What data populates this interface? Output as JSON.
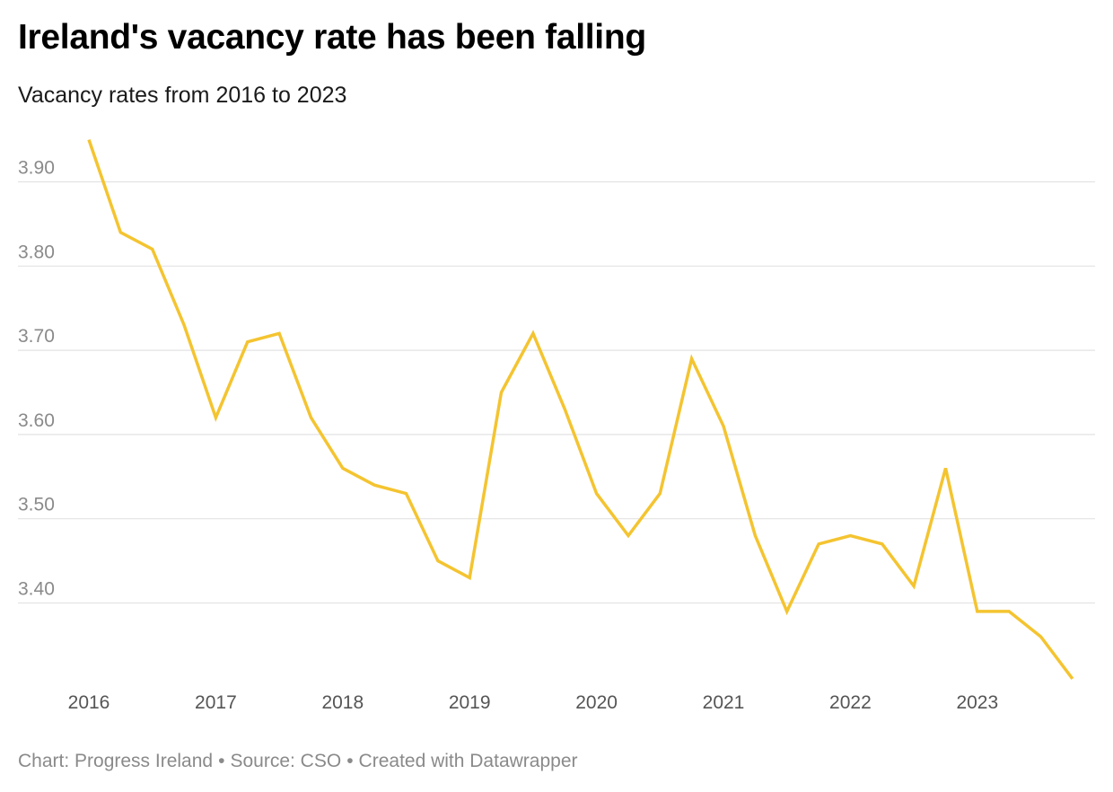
{
  "title": "Ireland's vacancy rate has been falling",
  "subtitle": "Vacancy rates from 2016 to 2023",
  "footer": {
    "chart_credit": "Chart: Progress Ireland",
    "source": "Source: CSO",
    "tool": "Created with Datawrapper",
    "separator": "•"
  },
  "chart_data": {
    "type": "line",
    "title": "Ireland's vacancy rate has been falling",
    "subtitle": "Vacancy rates from 2016 to 2023",
    "xlabel": "",
    "ylabel": "",
    "x_ticks": [
      "2016",
      "2017",
      "2018",
      "2019",
      "2020",
      "2021",
      "2022",
      "2023"
    ],
    "y_ticks": [
      "3.40",
      "3.50",
      "3.60",
      "3.70",
      "3.80",
      "3.90"
    ],
    "ylim": [
      3.3,
      3.95
    ],
    "grid": true,
    "line_color": "#f4c430",
    "series": [
      {
        "x": [
          "2016-Q1",
          "2016-Q2",
          "2016-Q3",
          "2016-Q4",
          "2017-Q1",
          "2017-Q2",
          "2017-Q3",
          "2017-Q4",
          "2018-Q1",
          "2018-Q2",
          "2018-Q3",
          "2018-Q4",
          "2019-Q1",
          "2019-Q2",
          "2019-Q3",
          "2019-Q4",
          "2020-Q1",
          "2020-Q2",
          "2020-Q3",
          "2020-Q4",
          "2021-Q1",
          "2021-Q2",
          "2021-Q3",
          "2021-Q4",
          "2022-Q1",
          "2022-Q2",
          "2022-Q3",
          "2022-Q4",
          "2023-Q1",
          "2023-Q2",
          "2023-Q3",
          "2023-Q4"
        ],
        "values": [
          3.95,
          3.84,
          3.82,
          3.73,
          3.62,
          3.71,
          3.72,
          3.62,
          3.56,
          3.54,
          3.53,
          3.45,
          3.43,
          3.65,
          3.72,
          3.63,
          3.53,
          3.48,
          3.53,
          3.69,
          3.61,
          3.48,
          3.39,
          3.47,
          3.48,
          3.47,
          3.42,
          3.56,
          3.39,
          3.39,
          3.36,
          3.31
        ]
      }
    ]
  }
}
